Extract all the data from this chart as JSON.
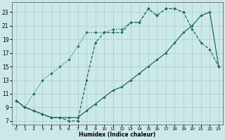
{
  "xlabel": "Humidex (Indice chaleur)",
  "bg_color": "#cce8e8",
  "grid_color": "#b0d0d0",
  "line_color": "#1a6b5a",
  "xlim": [
    -0.5,
    23.5
  ],
  "ylim": [
    6.5,
    24.5
  ],
  "xticks": [
    0,
    1,
    2,
    3,
    4,
    5,
    6,
    7,
    8,
    9,
    10,
    11,
    12,
    13,
    14,
    15,
    16,
    17,
    18,
    19,
    20,
    21,
    22,
    23
  ],
  "yticks": [
    7,
    9,
    11,
    13,
    15,
    17,
    19,
    21,
    23
  ],
  "line1_x": [
    0,
    1,
    2,
    3,
    4,
    5,
    6,
    7,
    8,
    9,
    10,
    11,
    12,
    13,
    14,
    15,
    16,
    17,
    18,
    19
  ],
  "line1_y": [
    10,
    9,
    11,
    13,
    14,
    15,
    16,
    18,
    20,
    20,
    20,
    20.5,
    20.5,
    21.5,
    21.5,
    23.5,
    22.5,
    23.5,
    23.5,
    23
  ],
  "line2_x": [
    0,
    1,
    2,
    3,
    4,
    5,
    6,
    7,
    8,
    9,
    10,
    11,
    12,
    13,
    14,
    15,
    16,
    17,
    18,
    19,
    20,
    21,
    22,
    23
  ],
  "line2_y": [
    10,
    9,
    8.5,
    8,
    7.5,
    7.5,
    7.5,
    7.5,
    8.5,
    9.5,
    10.5,
    11.5,
    12,
    13,
    14,
    15,
    16,
    17,
    18.5,
    20,
    21,
    22.5,
    23,
    15
  ],
  "line3_x": [
    0,
    1,
    2,
    3,
    4,
    5,
    6,
    7,
    8,
    9,
    10,
    11,
    12,
    13,
    14,
    15,
    16,
    17,
    18,
    19,
    20,
    21,
    22,
    23
  ],
  "line3_y": [
    10,
    9,
    8.5,
    8,
    7.5,
    7.5,
    7,
    7,
    13,
    18.5,
    20,
    20,
    20,
    21.5,
    21.5,
    23.5,
    22.5,
    23.5,
    23.5,
    23,
    20.5,
    18.5,
    17.5,
    15
  ]
}
